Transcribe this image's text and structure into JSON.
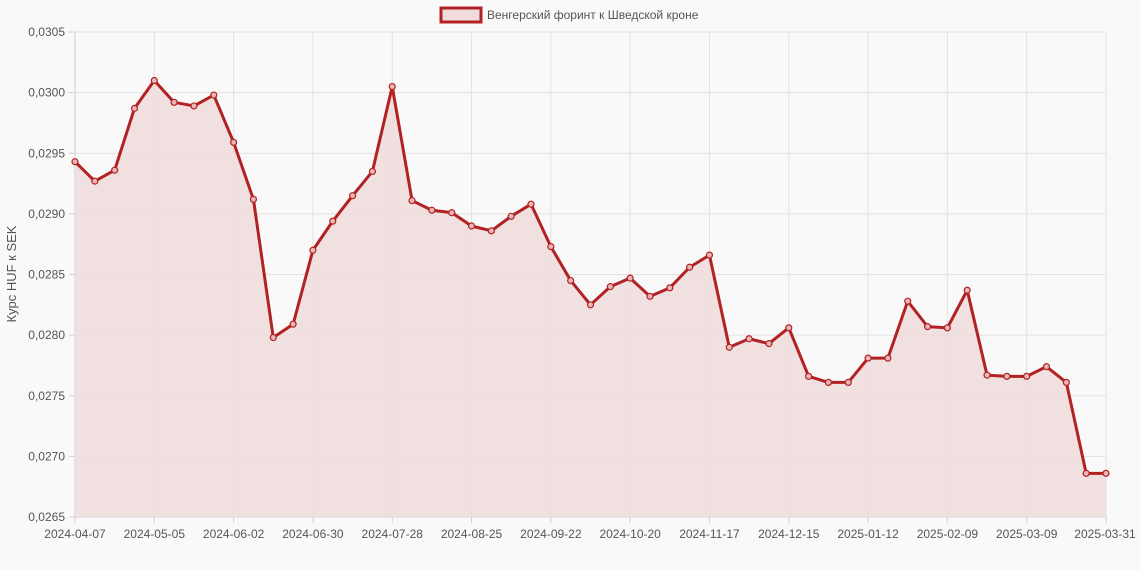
{
  "chart_data": {
    "type": "area",
    "series": [
      {
        "name": "Венгерский форинт к Шведской кроне",
        "line_color": "#b22222",
        "fill_color": "#f0dcdc",
        "values": [
          0.02943,
          0.02927,
          0.02936,
          0.02987,
          0.0301,
          0.02992,
          0.02989,
          0.02998,
          0.02959,
          0.02912,
          0.02798,
          0.02809,
          0.0287,
          0.02894,
          0.02915,
          0.02935,
          0.03005,
          0.02911,
          0.02903,
          0.02901,
          0.0289,
          0.02886,
          0.02898,
          0.02908,
          0.02873,
          0.02845,
          0.02825,
          0.0284,
          0.02847,
          0.02832,
          0.02839,
          0.02856,
          0.02866,
          0.0279,
          0.02797,
          0.02793,
          0.02806,
          0.02766,
          0.02761,
          0.02761,
          0.02781,
          0.02781,
          0.02828,
          0.02807,
          0.02806,
          0.02837,
          0.02767,
          0.02766,
          0.02766,
          0.02774,
          0.02761,
          0.02686,
          0.02686
        ]
      }
    ],
    "x_tick_labels": [
      "2024-04-07",
      "2024-05-05",
      "2024-06-02",
      "2024-06-30",
      "2024-07-28",
      "2024-08-25",
      "2024-09-22",
      "2024-10-20",
      "2024-11-17",
      "2024-12-15",
      "2025-01-12",
      "2025-02-09",
      "2025-03-09",
      "2025-03-31"
    ],
    "y_tick_labels": [
      "0,0305",
      "0,0300",
      "0,0295",
      "0,0290",
      "0,0285",
      "0,0280",
      "0,0275",
      "0,0270",
      "0,0265"
    ],
    "ylabel": "Курс HUF к SEK",
    "xlabel": "",
    "title": "",
    "ylim": [
      0.0265,
      0.0305
    ],
    "y_step": 0.0005,
    "grid": true,
    "legend_position": "top-center"
  }
}
